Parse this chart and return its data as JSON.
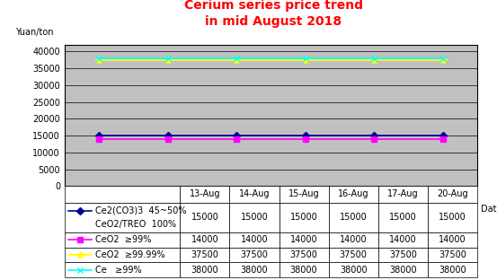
{
  "title": "Cerium series price trend\nin mid August 2018",
  "title_color": "red",
  "ylabel": "Yuan/ton",
  "xlabel": "Date",
  "dates": [
    "13-Aug",
    "14-Aug",
    "15-Aug",
    "16-Aug",
    "17-Aug",
    "20-Aug"
  ],
  "series": [
    {
      "label": "Ce2(CO3)3  45~50%\nCeO2/TREO  100%",
      "label_line1": "Ce2(CO3)3  45~50%",
      "label_line2": "CeO2/TREO  100%",
      "values": [
        15000,
        15000,
        15000,
        15000,
        15000,
        15000
      ],
      "color": "#000099",
      "marker": "D",
      "linewidth": 1.2,
      "markersize": 4
    },
    {
      "label": "CeO2  ≥99%",
      "label_line1": "CeO2  ≥99%",
      "label_line2": "",
      "values": [
        14000,
        14000,
        14000,
        14000,
        14000,
        14000
      ],
      "color": "#ff00ff",
      "marker": "s",
      "linewidth": 1.2,
      "markersize": 4
    },
    {
      "label": "CeO2  ≥99.99%",
      "label_line1": "CeO2  ≥99.99%",
      "label_line2": "",
      "values": [
        37500,
        37500,
        37500,
        37500,
        37500,
        37500
      ],
      "color": "#ffff00",
      "marker": "*",
      "linewidth": 1.2,
      "markersize": 6
    },
    {
      "label": "Ce   ≥99%",
      "label_line1": "Ce   ≥99%",
      "label_line2": "",
      "values": [
        38000,
        38000,
        38000,
        38000,
        38000,
        38000
      ],
      "color": "#00ffff",
      "marker": "x",
      "linewidth": 1.2,
      "markersize": 5
    }
  ],
  "ylim": [
    0,
    42000
  ],
  "yticks": [
    0,
    5000,
    10000,
    15000,
    20000,
    25000,
    30000,
    35000,
    40000
  ],
  "plot_bg_color": "#c0c0c0",
  "fig_bg_color": "#ffffff",
  "grid_color": "#000000",
  "grid_linewidth": 0.5,
  "tick_fontsize": 7,
  "table_fontsize": 7
}
